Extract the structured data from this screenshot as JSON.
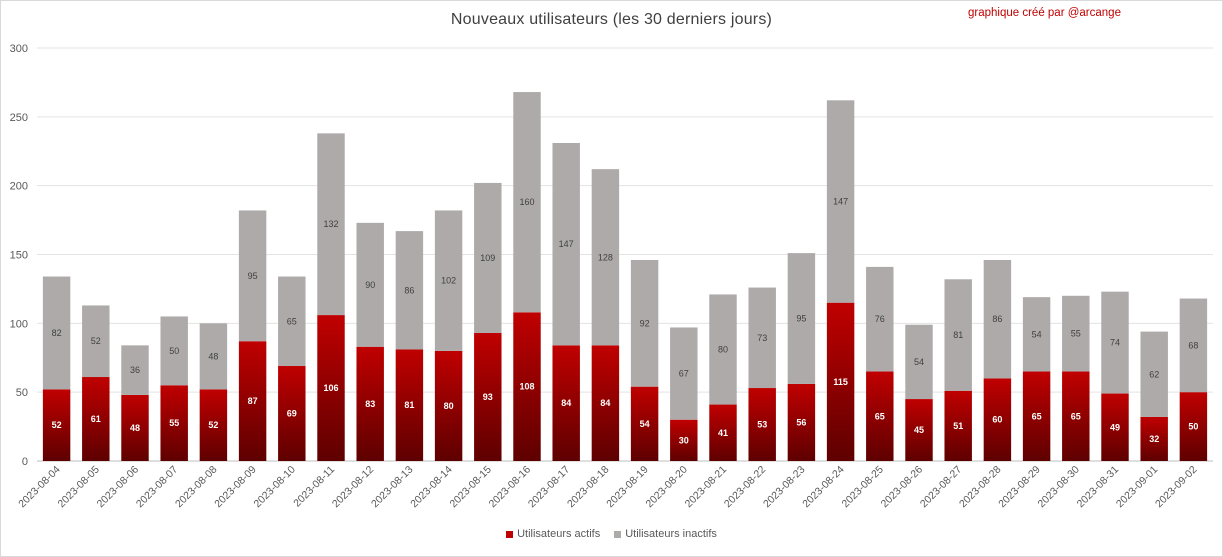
{
  "chart_data": {
    "type": "bar",
    "stacked": true,
    "title": "Nouveaux utilisateurs  (les 30 derniers  jours)",
    "annotation": "graphique créé par @arcange",
    "categories": [
      "2023-08-04",
      "2023-08-05",
      "2023-08-06",
      "2023-08-07",
      "2023-08-08",
      "2023-08-09",
      "2023-08-10",
      "2023-08-11",
      "2023-08-12",
      "2023-08-13",
      "2023-08-14",
      "2023-08-15",
      "2023-08-16",
      "2023-08-17",
      "2023-08-18",
      "2023-08-19",
      "2023-08-20",
      "2023-08-21",
      "2023-08-22",
      "2023-08-23",
      "2023-08-24",
      "2023-08-25",
      "2023-08-26",
      "2023-08-27",
      "2023-08-28",
      "2023-08-29",
      "2023-08-30",
      "2023-08-31",
      "2023-09-01",
      "2023-09-02"
    ],
    "series": [
      {
        "name": "Utilisateurs actifs",
        "color": "#c00000",
        "values": [
          52,
          61,
          48,
          55,
          52,
          87,
          69,
          106,
          83,
          81,
          80,
          93,
          108,
          84,
          84,
          54,
          30,
          41,
          53,
          56,
          115,
          65,
          45,
          51,
          60,
          65,
          65,
          49,
          32,
          50
        ]
      },
      {
        "name": "Utilisateurs inactifs",
        "color": "#aeaaaa",
        "values": [
          82,
          52,
          36,
          50,
          48,
          95,
          65,
          132,
          90,
          86,
          102,
          109,
          160,
          147,
          128,
          92,
          67,
          80,
          73,
          95,
          147,
          76,
          54,
          81,
          86,
          54,
          55,
          74,
          62,
          68
        ]
      }
    ],
    "yticks": [
      0,
      50,
      100,
      150,
      200,
      250,
      300
    ],
    "ylim": [
      0,
      300
    ],
    "grid": true,
    "legend_position": "bottom"
  }
}
